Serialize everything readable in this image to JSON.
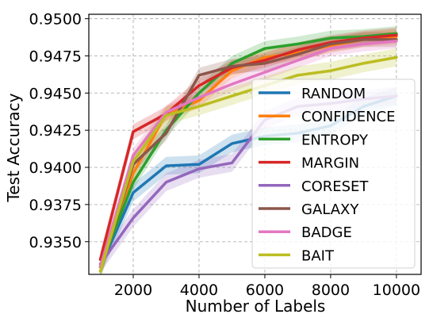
{
  "chart_data": {
    "type": "line",
    "xlabel": "Number of Labels",
    "ylabel": "Test Accuracy",
    "x_ticks": [
      2000,
      4000,
      6000,
      8000,
      10000
    ],
    "y_ticks": [
      "0.9350",
      "0.9375",
      "0.9400",
      "0.9425",
      "0.9450",
      "0.9475",
      "0.9500"
    ],
    "xlim": [
      650,
      10750
    ],
    "ylim": [
      0.9328,
      0.9503
    ],
    "grid": true,
    "legend_position": "lower-right",
    "x": [
      1000,
      2000,
      3000,
      4000,
      5000,
      6000,
      7000,
      8000,
      9000,
      10000
    ],
    "series": [
      {
        "name": "RANDOM",
        "color": "#1f77b4",
        "values": [
          0.9333,
          0.9383,
          0.9401,
          0.9402,
          0.9416,
          0.9421,
          0.9423,
          0.9428,
          0.9441,
          0.9448
        ],
        "band": 0.0006
      },
      {
        "name": "CONFIDENCE",
        "color": "#ff7f0e",
        "values": [
          0.9333,
          0.9396,
          0.9436,
          0.9445,
          0.9465,
          0.9474,
          0.9477,
          0.9482,
          0.9486,
          0.9488
        ],
        "band": 0.0005
      },
      {
        "name": "ENTROPY",
        "color": "#2ca02c",
        "values": [
          0.9333,
          0.939,
          0.9425,
          0.945,
          0.947,
          0.948,
          0.9483,
          0.9487,
          0.9488,
          0.949
        ],
        "band": 0.0005
      },
      {
        "name": "MARGIN",
        "color": "#d62728",
        "values": [
          0.9338,
          0.9424,
          0.9436,
          0.9455,
          0.9467,
          0.9472,
          0.9479,
          0.9484,
          0.9487,
          0.9489
        ],
        "band": 0.0005
      },
      {
        "name": "CORESET",
        "color": "#9467bd",
        "values": [
          0.9335,
          0.9366,
          0.939,
          0.9399,
          0.9403,
          0.9432,
          0.9441,
          0.9443,
          0.9446,
          0.9448
        ],
        "band": 0.0006
      },
      {
        "name": "GALAXY",
        "color": "#8c564b",
        "values": [
          0.933,
          0.9402,
          0.9423,
          0.9462,
          0.9468,
          0.947,
          0.9476,
          0.9483,
          0.9486,
          0.9486
        ],
        "band": 0.0005
      },
      {
        "name": "BADGE",
        "color": "#e377c2",
        "values": [
          0.9333,
          0.9408,
          0.9437,
          0.9447,
          0.9456,
          0.9464,
          0.9472,
          0.948,
          0.9483,
          0.9485
        ],
        "band": 0.0005
      },
      {
        "name": "BAIT",
        "color": "#bcbd22",
        "values": [
          0.933,
          0.9404,
          0.9435,
          0.9441,
          0.9448,
          0.9455,
          0.9462,
          0.9465,
          0.947,
          0.9474
        ],
        "band": 0.0006
      }
    ]
  }
}
